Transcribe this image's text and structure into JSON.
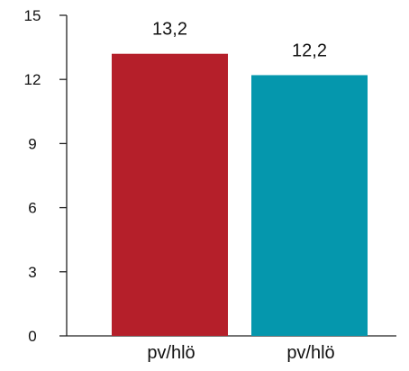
{
  "chart_data": {
    "type": "bar",
    "categories": [
      "pv/hlö",
      "pv/hlö"
    ],
    "values": [
      13.2,
      12.2
    ],
    "value_labels": [
      "13,2",
      "12,2"
    ],
    "colors": [
      "#b51f2a",
      "#0597ad"
    ],
    "ylim": [
      0,
      15
    ],
    "yticks": [
      0,
      3,
      6,
      9,
      12,
      15
    ],
    "ytick_labels": [
      "0",
      "3",
      "6",
      "9",
      "12",
      "15"
    ],
    "title": "",
    "xlabel": "",
    "ylabel": "",
    "grid": false,
    "legend": "none"
  }
}
